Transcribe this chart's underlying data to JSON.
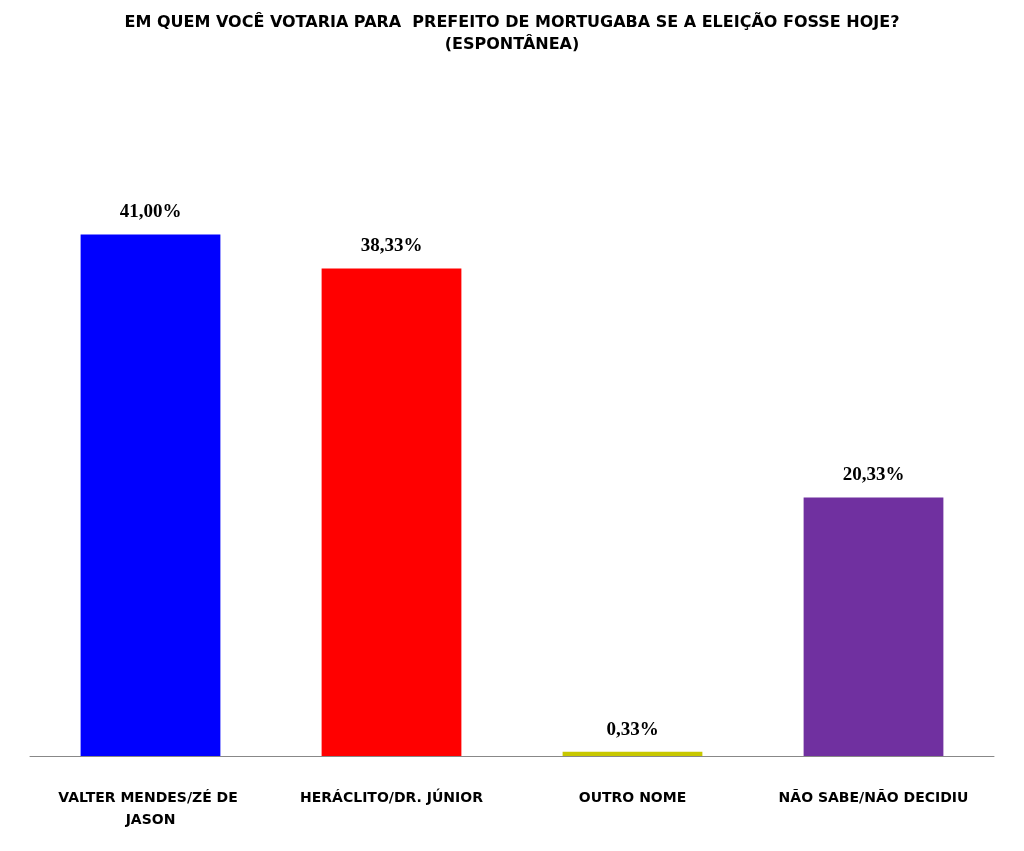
{
  "chart_data": {
    "type": "bar",
    "title": "EM QUEM VOCÊ VOTARIA PARA  PREFEITO DE MORTUGABA SE A ELEIÇÃO FOSSE HOJE?",
    "subtitle": "(ESPONTÂNEA)",
    "categories": [
      "VALTER MENDES/ZÉ DE JASON",
      "HERÁCLITO/DR. JÚNIOR",
      "OUTRO NOME",
      "NÃO SABE/NÃO DECIDIU"
    ],
    "values": [
      41.0,
      38.33,
      0.33,
      20.33
    ],
    "colors": [
      "#0000ff",
      "#ff0000",
      "#c8c800",
      "#7030a0"
    ],
    "value_labels": [
      "41,00%",
      "38,33%",
      "0,33%",
      "20,33%"
    ]
  }
}
